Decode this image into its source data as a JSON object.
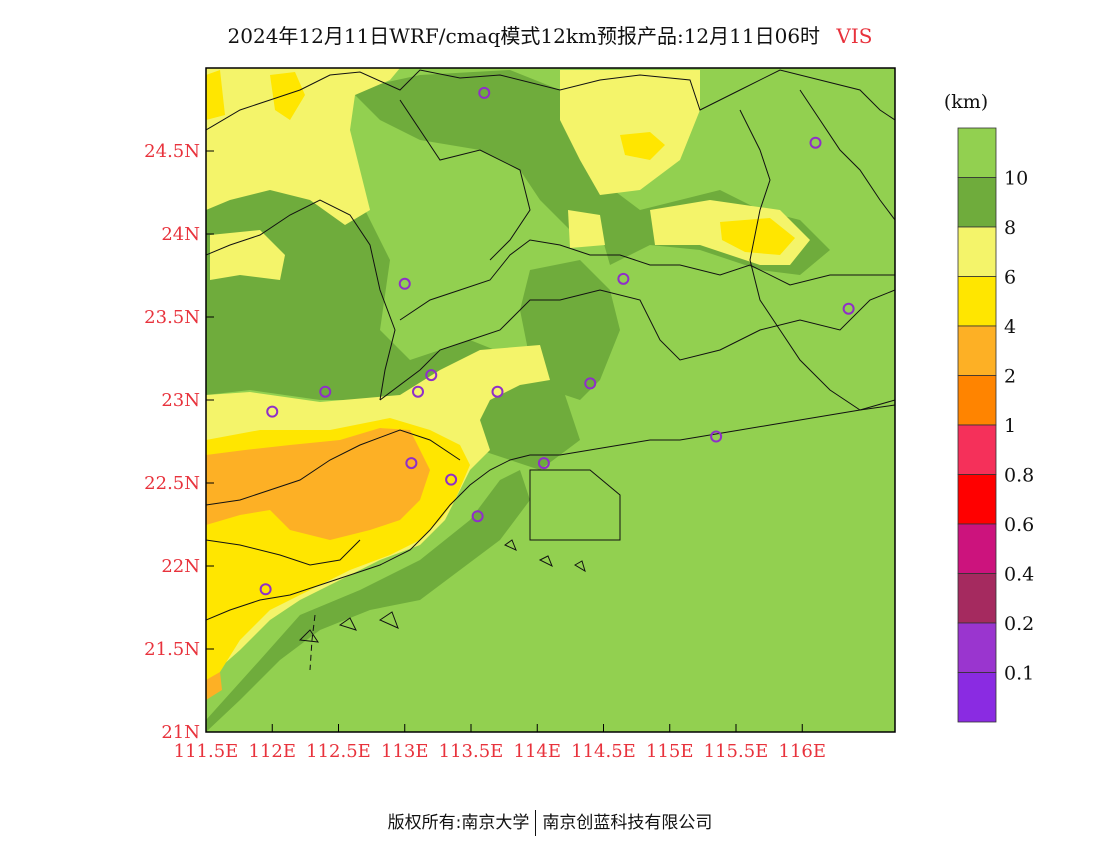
{
  "title": {
    "main": "2024年12月11日WRF/cmaq模式12km预报产品:12月11日06时",
    "variable": "VIS"
  },
  "footer": {
    "left": "版权所有:南京大学",
    "right": "南京创蓝科技有限公司"
  },
  "map": {
    "lon_range": [
      111.5,
      116.7
    ],
    "lat_range": [
      21.0,
      25.0
    ],
    "x_ticks": [
      {
        "value": 111.5,
        "label": "111.5E"
      },
      {
        "value": 112.0,
        "label": "112E"
      },
      {
        "value": 112.5,
        "label": "112.5E"
      },
      {
        "value": 113.0,
        "label": "113E"
      },
      {
        "value": 113.5,
        "label": "113.5E"
      },
      {
        "value": 114.0,
        "label": "114E"
      },
      {
        "value": 114.5,
        "label": "114.5E"
      },
      {
        "value": 115.0,
        "label": "115E"
      },
      {
        "value": 115.5,
        "label": "115.5E"
      },
      {
        "value": 116.0,
        "label": "116E"
      }
    ],
    "y_ticks": [
      {
        "value": 21.0,
        "label": "21N"
      },
      {
        "value": 21.5,
        "label": "21.5N"
      },
      {
        "value": 22.0,
        "label": "22N"
      },
      {
        "value": 22.5,
        "label": "22.5N"
      },
      {
        "value": 23.0,
        "label": "23N"
      },
      {
        "value": 23.5,
        "label": "23.5N"
      },
      {
        "value": 24.0,
        "label": "24N"
      },
      {
        "value": 24.5,
        "label": "24.5N"
      }
    ],
    "stations": [
      {
        "lon": 113.6,
        "lat": 24.85
      },
      {
        "lon": 113.0,
        "lat": 23.7
      },
      {
        "lon": 112.4,
        "lat": 23.05
      },
      {
        "lon": 113.1,
        "lat": 23.05
      },
      {
        "lon": 113.2,
        "lat": 23.15
      },
      {
        "lon": 113.7,
        "lat": 23.05
      },
      {
        "lon": 114.4,
        "lat": 23.1
      },
      {
        "lon": 114.65,
        "lat": 23.73
      },
      {
        "lon": 116.1,
        "lat": 24.55
      },
      {
        "lon": 116.35,
        "lat": 23.55
      },
      {
        "lon": 115.35,
        "lat": 22.78
      },
      {
        "lon": 112.0,
        "lat": 22.93
      },
      {
        "lon": 113.05,
        "lat": 22.62
      },
      {
        "lon": 113.35,
        "lat": 22.52
      },
      {
        "lon": 114.05,
        "lat": 22.62
      },
      {
        "lon": 113.55,
        "lat": 22.3
      },
      {
        "lon": 111.95,
        "lat": 21.86
      }
    ],
    "station_color": "#8f2fc8"
  },
  "colorbar": {
    "unit": "(km)",
    "labels": [
      "10",
      "8",
      "6",
      "4",
      "2",
      "1",
      "0.8",
      "0.6",
      "0.4",
      "0.2",
      "0.1"
    ],
    "colors": [
      "#92d050",
      "#6fac3c",
      "#f4f46a",
      "#ffe600",
      "#fdb025",
      "#ff8400",
      "#f5305a",
      "#ff0000",
      "#cc137d",
      "#a52a5f",
      "#9a35cf",
      "#8a2be2"
    ]
  }
}
